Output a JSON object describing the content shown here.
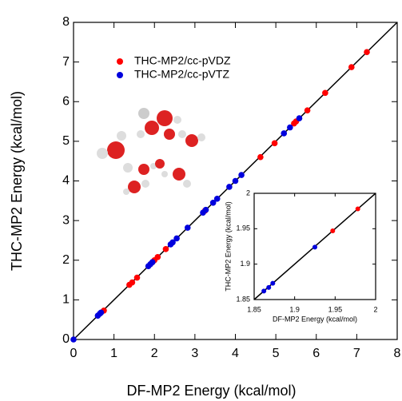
{
  "chart_data": [
    {
      "type": "scatter",
      "x_label": "DF-MP2 Energy (kcal/mol)",
      "y_label": "THC-MP2 Energy (kcal/mol)",
      "xlim": [
        0,
        8
      ],
      "ylim": [
        0,
        8
      ],
      "xticks": [
        0,
        1,
        2,
        3,
        4,
        5,
        6,
        7,
        8
      ],
      "yticks": [
        0,
        1,
        2,
        3,
        4,
        5,
        6,
        7,
        8
      ],
      "legend": "upper left",
      "series": [
        {
          "name": "THC-MP2/cc-pVDZ",
          "color": "#ff0000",
          "x": [
            0.75,
            1.38,
            1.45,
            1.57,
            1.95,
            2.0,
            2.08,
            2.28,
            3.25,
            4.62,
            4.97,
            5.45,
            5.5,
            5.78,
            6.22,
            6.87,
            7.25
          ],
          "y": [
            0.73,
            1.38,
            1.44,
            1.56,
            1.95,
            2.0,
            2.08,
            2.28,
            3.25,
            4.6,
            4.95,
            5.45,
            5.5,
            5.78,
            6.22,
            6.87,
            7.25
          ]
        },
        {
          "name": "THC-MP2/cc-pVTZ",
          "color": "#0000dd",
          "x": [
            0.0,
            0.6,
            0.65,
            0.68,
            1.85,
            1.9,
            1.95,
            2.4,
            2.45,
            2.55,
            2.82,
            3.2,
            3.27,
            3.45,
            3.55,
            3.85,
            4.0,
            4.15,
            5.2,
            5.35,
            5.58
          ],
          "y": [
            0.0,
            0.6,
            0.65,
            0.68,
            1.85,
            1.9,
            1.95,
            2.4,
            2.45,
            2.55,
            2.82,
            3.2,
            3.27,
            3.45,
            3.55,
            3.85,
            4.0,
            4.15,
            5.2,
            5.35,
            5.58
          ]
        }
      ]
    },
    {
      "type": "scatter",
      "x_label": "DF-MP2 Energy (kcal/mol)",
      "y_label": "THC-MP2 Energy (kcal/mol)",
      "xlim": [
        1.85,
        2
      ],
      "ylim": [
        1.85,
        2
      ],
      "xticks": [
        1.85,
        1.9,
        1.95,
        2
      ],
      "yticks": [
        1.85,
        1.9,
        1.95,
        2
      ],
      "series": [
        {
          "color": "#ff0000",
          "x": [
            1.947,
            1.978
          ],
          "y": [
            1.947,
            1.978
          ]
        },
        {
          "color": "#0000dd",
          "x": [
            1.862,
            1.868,
            1.873,
            1.925
          ],
          "y": [
            1.862,
            1.867,
            1.873,
            1.924
          ]
        }
      ]
    }
  ]
}
